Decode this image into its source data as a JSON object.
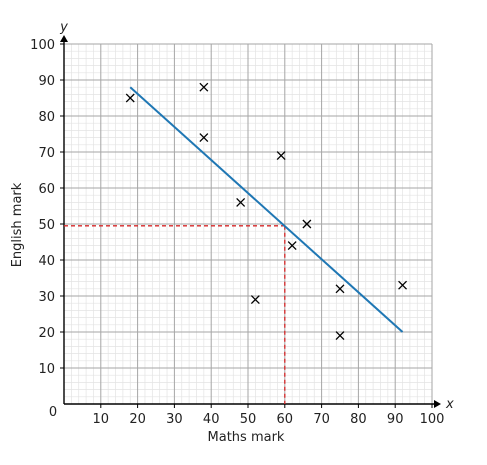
{
  "chart_data": {
    "type": "scatter",
    "xlabel": "Maths mark",
    "ylabel": "English mark",
    "x_axis_var": "x",
    "y_axis_var": "y",
    "origin_label": "0",
    "xlim": [
      0,
      100
    ],
    "ylim": [
      0,
      100
    ],
    "x_ticks": [
      10,
      20,
      30,
      40,
      50,
      60,
      70,
      80,
      90,
      100
    ],
    "y_ticks": [
      10,
      20,
      30,
      40,
      50,
      60,
      70,
      80,
      90,
      100
    ],
    "grid": {
      "major": 10,
      "minor": 2
    },
    "points": [
      {
        "x": 18,
        "y": 85
      },
      {
        "x": 38,
        "y": 88
      },
      {
        "x": 38,
        "y": 74
      },
      {
        "x": 48,
        "y": 56
      },
      {
        "x": 52,
        "y": 29
      },
      {
        "x": 59,
        "y": 69
      },
      {
        "x": 62,
        "y": 44
      },
      {
        "x": 66,
        "y": 50
      },
      {
        "x": 75,
        "y": 32
      },
      {
        "x": 75,
        "y": 19
      },
      {
        "x": 92,
        "y": 33
      }
    ],
    "line_of_best_fit": {
      "x1": 18,
      "y1": 88,
      "x2": 92,
      "y2": 20
    },
    "reading_line": {
      "x": 60,
      "y": 49.5
    },
    "colors": {
      "fit_line": "#1f77b4",
      "reading_line": "#d62728",
      "markers": "#000000",
      "major_grid": "#a6a6a6",
      "minor_grid": "#e3e3e3"
    }
  }
}
